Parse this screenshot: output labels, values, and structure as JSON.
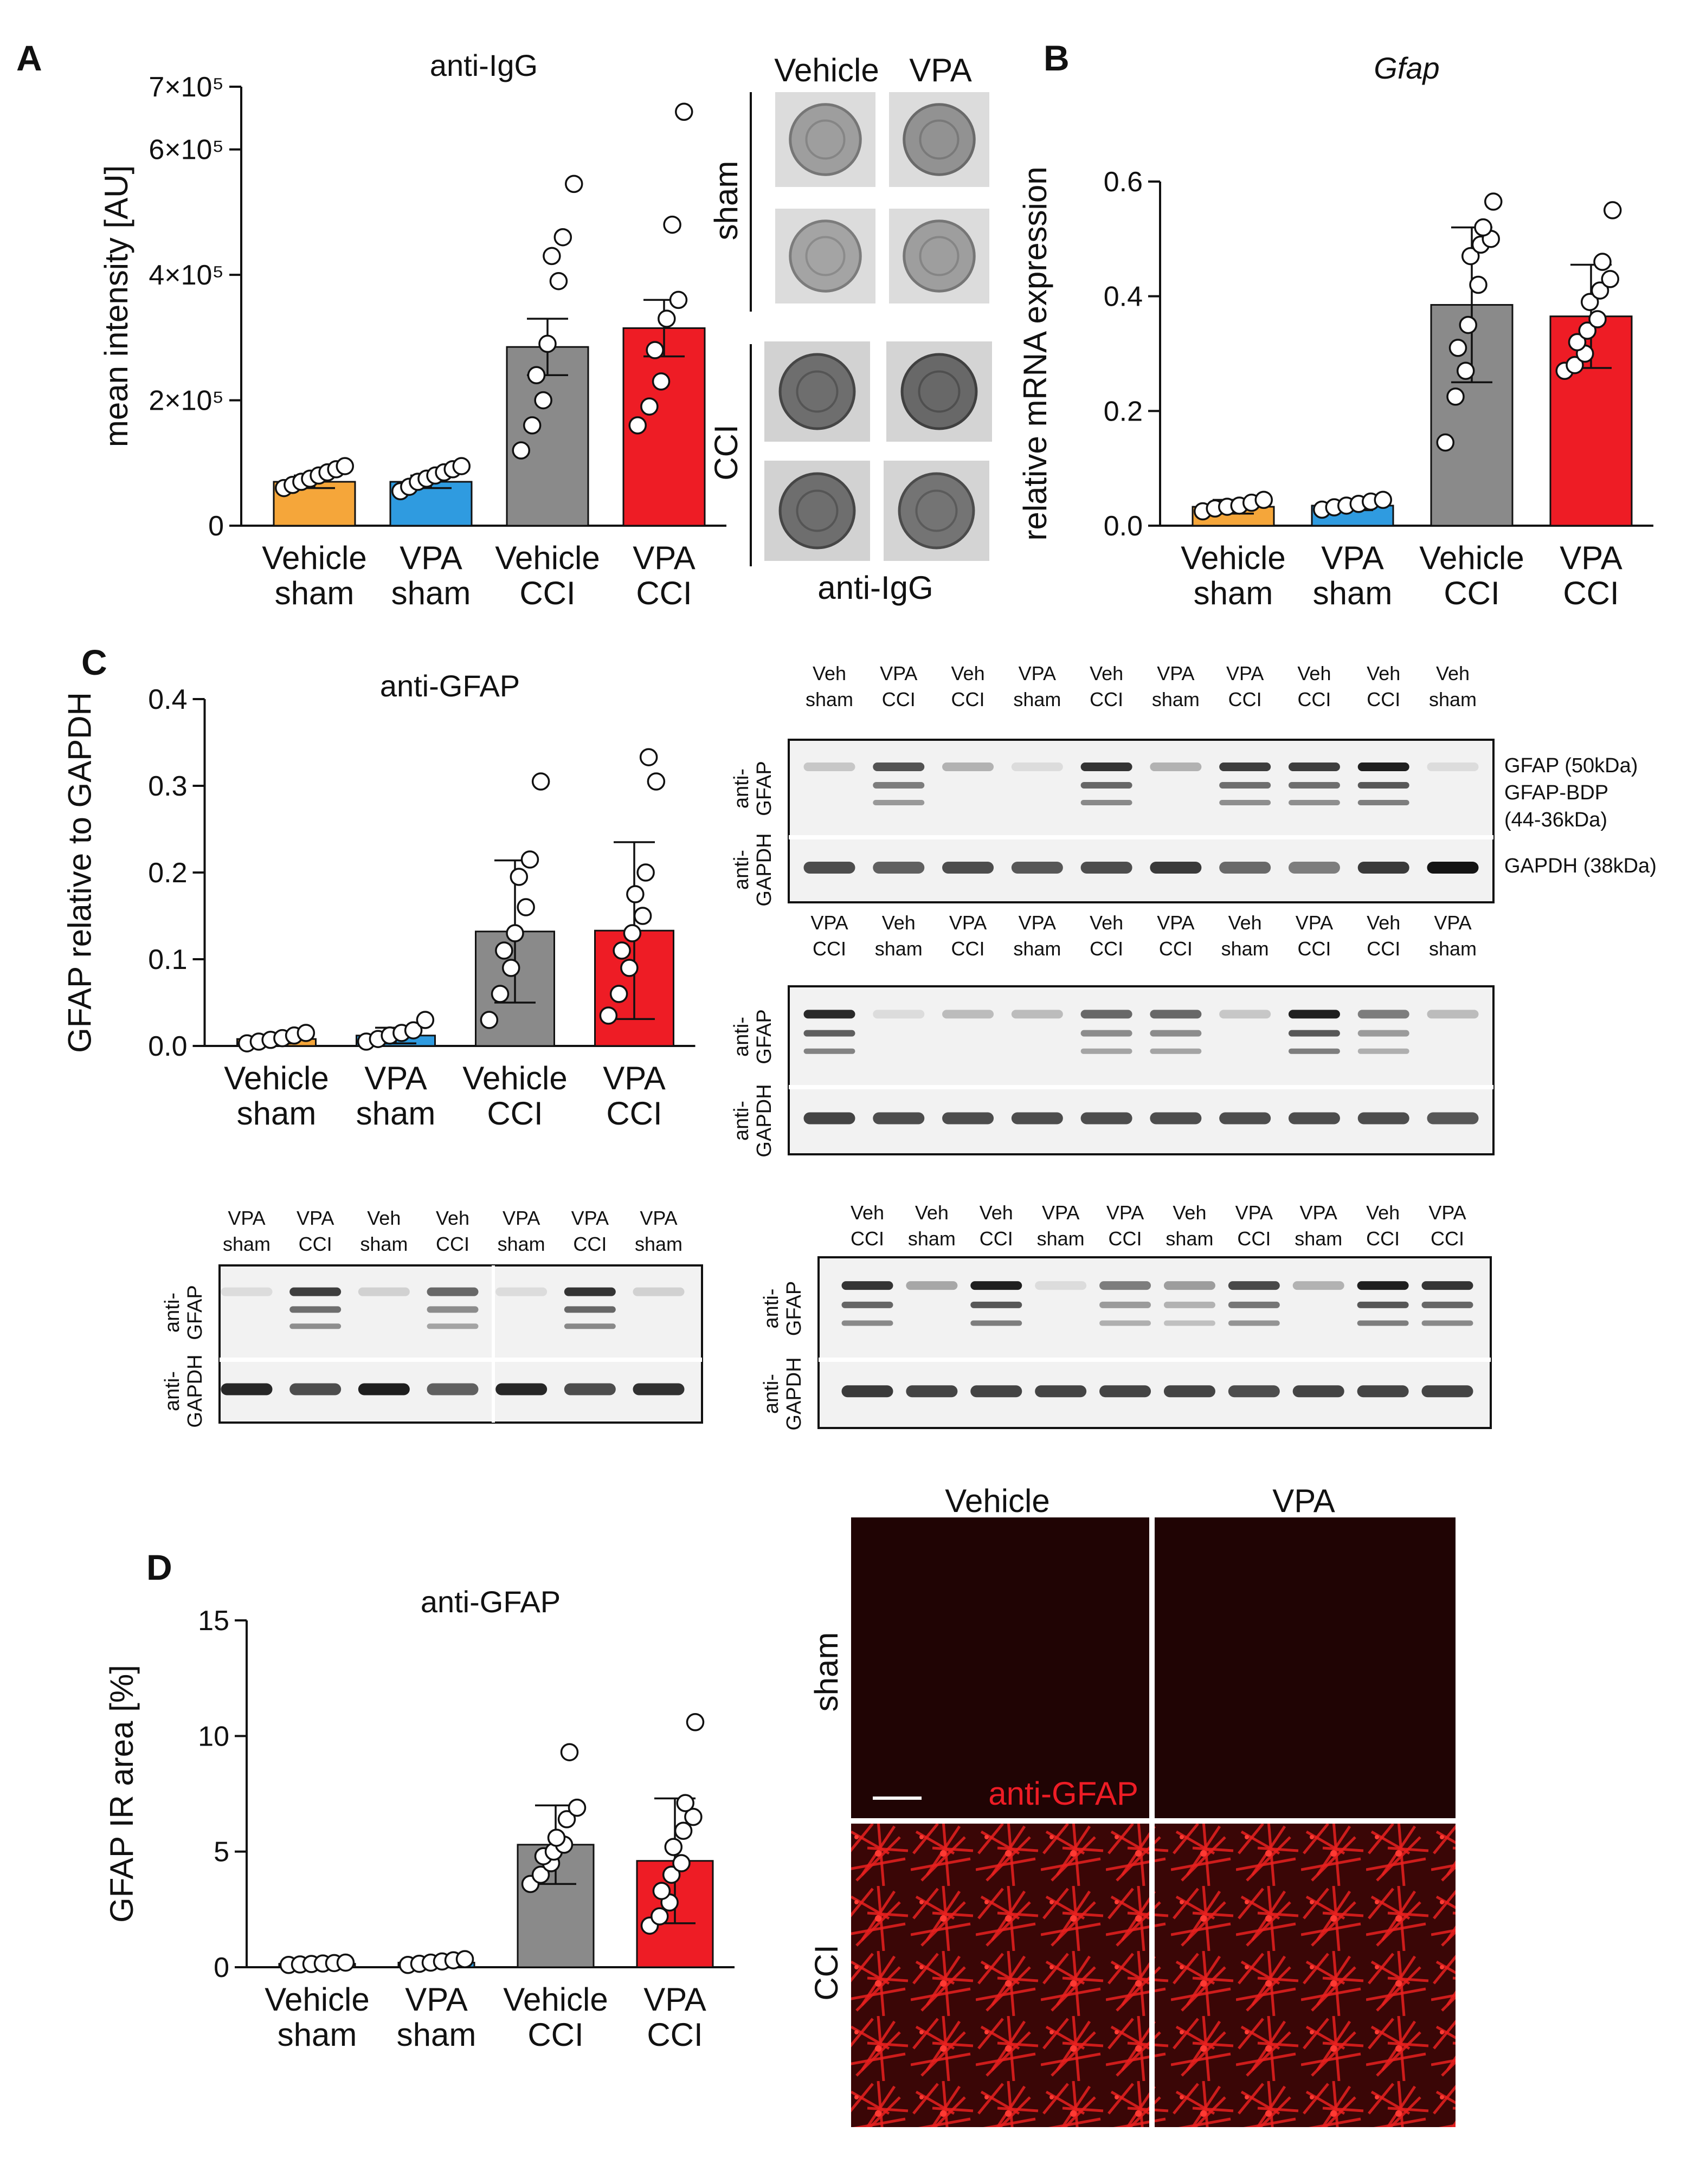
{
  "panels": {
    "A": "A",
    "B": "B",
    "C": "C",
    "D": "D"
  },
  "colors": {
    "vehicle_sham": "#f5a63a",
    "vpa_sham": "#2f9be0",
    "vehicle_cci": "#8a8a8a",
    "vpa_cci": "#ee1c25"
  },
  "chart_data": [
    {
      "id": "A",
      "type": "bar",
      "title": "anti-IgG",
      "ylabel": "mean intensity [AU]",
      "ylim": [
        0,
        700000
      ],
      "yticks": [
        {
          "v": 0,
          "t": "0"
        },
        {
          "v": 200000,
          "t": "2×10⁵"
        },
        {
          "v": 400000,
          "t": "4×10⁵"
        },
        {
          "v": 600000,
          "t": "6×10⁵"
        },
        {
          "v": 700000,
          "t": "7×10⁵"
        }
      ],
      "categories": [
        [
          "Vehicle",
          "sham"
        ],
        [
          "VPA",
          "sham"
        ],
        [
          "Vehicle",
          "CCI"
        ],
        [
          "VPA",
          "CCI"
        ]
      ],
      "values": [
        70000,
        70000,
        285000,
        315000
      ],
      "err": [
        10000,
        10000,
        45000,
        45000
      ],
      "points": [
        [
          60000,
          65000,
          70000,
          75000,
          80000,
          85000,
          90000,
          95000
        ],
        [
          55000,
          62000,
          70000,
          75000,
          80000,
          85000,
          90000,
          95000
        ],
        [
          120000,
          160000,
          200000,
          240000,
          290000,
          390000,
          430000,
          460000,
          545000
        ],
        [
          160000,
          190000,
          230000,
          280000,
          330000,
          360000,
          480000,
          660000
        ]
      ]
    },
    {
      "id": "B",
      "type": "bar",
      "title": "Gfap",
      "ylabel": "relative mRNA expression",
      "ylim": [
        0,
        0.6
      ],
      "yticks": [
        {
          "v": 0,
          "t": "0.0"
        },
        {
          "v": 0.2,
          "t": "0.2"
        },
        {
          "v": 0.4,
          "t": "0.4"
        },
        {
          "v": 0.6,
          "t": "0.6"
        }
      ],
      "categories": [
        [
          "Vehicle",
          "sham"
        ],
        [
          "VPA",
          "sham"
        ],
        [
          "Vehicle",
          "CCI"
        ],
        [
          "VPA",
          "CCI"
        ]
      ],
      "values": [
        0.033,
        0.035,
        0.385,
        0.365
      ],
      "err": [
        0.012,
        0.008,
        0.135,
        0.09
      ],
      "points": [
        [
          0.025,
          0.03,
          0.033,
          0.035,
          0.04,
          0.045
        ],
        [
          0.028,
          0.032,
          0.035,
          0.038,
          0.042,
          0.045
        ],
        [
          0.145,
          0.225,
          0.27,
          0.31,
          0.35,
          0.42,
          0.47,
          0.49,
          0.5,
          0.52,
          0.565
        ],
        [
          0.27,
          0.28,
          0.3,
          0.32,
          0.34,
          0.36,
          0.39,
          0.41,
          0.43,
          0.46,
          0.55
        ]
      ]
    },
    {
      "id": "C",
      "type": "bar",
      "title": "anti-GFAP",
      "ylabel": "GFAP relative to GAPDH",
      "ylim": [
        0,
        0.4
      ],
      "yticks": [
        {
          "v": 0,
          "t": "0.0"
        },
        {
          "v": 0.1,
          "t": "0.1"
        },
        {
          "v": 0.2,
          "t": "0.2"
        },
        {
          "v": 0.3,
          "t": "0.3"
        },
        {
          "v": 0.4,
          "t": "0.4"
        }
      ],
      "categories": [
        [
          "Vehicle",
          "sham"
        ],
        [
          "VPA",
          "sham"
        ],
        [
          "Vehicle",
          "CCI"
        ],
        [
          "VPA",
          "CCI"
        ]
      ],
      "values": [
        0.008,
        0.012,
        0.132,
        0.133
      ],
      "err": [
        0.005,
        0.009,
        0.082,
        0.102
      ],
      "points": [
        [
          0.003,
          0.005,
          0.007,
          0.009,
          0.012,
          0.015
        ],
        [
          0.005,
          0.008,
          0.012,
          0.015,
          0.018,
          0.03
        ],
        [
          0.03,
          0.06,
          0.09,
          0.11,
          0.13,
          0.16,
          0.195,
          0.215,
          0.305
        ],
        [
          0.035,
          0.06,
          0.09,
          0.11,
          0.13,
          0.15,
          0.175,
          0.2,
          0.305,
          0.333
        ]
      ]
    },
    {
      "id": "D",
      "type": "bar",
      "title": "anti-GFAP",
      "ylabel": "GFAP IR area [%]",
      "ylim": [
        0,
        15
      ],
      "yticks": [
        {
          "v": 0,
          "t": "0"
        },
        {
          "v": 5,
          "t": "5"
        },
        {
          "v": 10,
          "t": "10"
        },
        {
          "v": 15,
          "t": "15"
        }
      ],
      "categories": [
        [
          "Vehicle",
          "sham"
        ],
        [
          "VPA",
          "sham"
        ],
        [
          "Vehicle",
          "CCI"
        ],
        [
          "VPA",
          "CCI"
        ]
      ],
      "values": [
        0.15,
        0.2,
        5.3,
        4.6
      ],
      "err": [
        0.08,
        0.12,
        1.7,
        2.7
      ],
      "points": [
        [
          0.1,
          0.12,
          0.14,
          0.16,
          0.18,
          0.2
        ],
        [
          0.1,
          0.15,
          0.2,
          0.25,
          0.3,
          0.35
        ],
        [
          3.6,
          4.0,
          4.5,
          4.8,
          5.0,
          5.3,
          5.6,
          6.4,
          6.9,
          9.3
        ],
        [
          1.8,
          2.2,
          2.8,
          3.3,
          4.0,
          4.5,
          5.2,
          5.9,
          6.5,
          7.1,
          10.6
        ]
      ]
    }
  ],
  "dotblot": {
    "cols": [
      "Vehicle",
      "VPA"
    ],
    "rows": [
      "sham",
      "CCI"
    ],
    "caption": "anti-IgG"
  },
  "blots": [
    {
      "lanes": [
        [
          "Veh",
          "sham"
        ],
        [
          "VPA",
          "CCI"
        ],
        [
          "Veh",
          "CCI"
        ],
        [
          "VPA",
          "sham"
        ],
        [
          "Veh",
          "CCI"
        ],
        [
          "VPA",
          "sham"
        ],
        [
          "VPA",
          "CCI"
        ],
        [
          "Veh",
          "CCI"
        ],
        [
          "Veh",
          "CCI"
        ],
        [
          "Veh",
          "sham"
        ]
      ],
      "gfap": [
        0.15,
        0.7,
        0.25,
        0.05,
        0.85,
        0.25,
        0.8,
        0.8,
        0.95,
        0.05
      ],
      "gapdh": [
        0.7,
        0.6,
        0.7,
        0.65,
        0.7,
        0.8,
        0.55,
        0.45,
        0.8,
        1.0
      ]
    },
    {
      "lanes": [
        [
          "VPA",
          "CCI"
        ],
        [
          "Veh",
          "sham"
        ],
        [
          "VPA",
          "CCI"
        ],
        [
          "VPA",
          "sham"
        ],
        [
          "Veh",
          "CCI"
        ],
        [
          "VPA",
          "CCI"
        ],
        [
          "Veh",
          "sham"
        ],
        [
          "VPA",
          "CCI"
        ],
        [
          "Veh",
          "CCI"
        ],
        [
          "VPA",
          "sham"
        ]
      ],
      "gfap": [
        0.9,
        0.05,
        0.2,
        0.2,
        0.6,
        0.6,
        0.15,
        0.95,
        0.5,
        0.2
      ],
      "gapdh": [
        0.75,
        0.7,
        0.7,
        0.7,
        0.7,
        0.7,
        0.7,
        0.7,
        0.7,
        0.65
      ]
    },
    {
      "lanes": [
        [
          "VPA",
          "sham"
        ],
        [
          "VPA",
          "CCI"
        ],
        [
          "Veh",
          "sham"
        ],
        [
          "Veh",
          "CCI"
        ],
        [
          "VPA",
          "sham"
        ],
        [
          "VPA",
          "CCI"
        ],
        [
          "VPA",
          "sham"
        ]
      ],
      "gfap": [
        0.05,
        0.8,
        0.1,
        0.6,
        0.05,
        0.85,
        0.1
      ],
      "gapdh": [
        0.9,
        0.7,
        0.95,
        0.6,
        0.9,
        0.7,
        0.85
      ]
    },
    {
      "lanes": [
        [
          "Veh",
          "CCI"
        ],
        [
          "Veh",
          "sham"
        ],
        [
          "Veh",
          "CCI"
        ],
        [
          "VPA",
          "sham"
        ],
        [
          "VPA",
          "CCI"
        ],
        [
          "Veh",
          "sham"
        ],
        [
          "VPA",
          "CCI"
        ],
        [
          "VPA",
          "sham"
        ],
        [
          "Veh",
          "CCI"
        ],
        [
          "VPA",
          "CCI"
        ]
      ],
      "gfap": [
        0.85,
        0.3,
        0.95,
        0.05,
        0.5,
        0.35,
        0.75,
        0.25,
        0.95,
        0.85
      ],
      "gapdh": [
        0.8,
        0.75,
        0.75,
        0.75,
        0.75,
        0.75,
        0.7,
        0.75,
        0.75,
        0.75
      ]
    }
  ],
  "blot_labels": {
    "anti_gfap": "anti-\nGFAP",
    "anti_gapdh": "anti-\nGAPDH",
    "gfap_50": "GFAP (50kDa)",
    "gfap_bdp": "GFAP-BDP",
    "gfap_bdp_kda": "(44-36kDa)",
    "gapdh_38": "GAPDH (38kDa)"
  },
  "micro": {
    "cols": [
      "Vehicle",
      "VPA"
    ],
    "rows": [
      "sham",
      "CCI"
    ],
    "stain": "anti-GFAP"
  }
}
